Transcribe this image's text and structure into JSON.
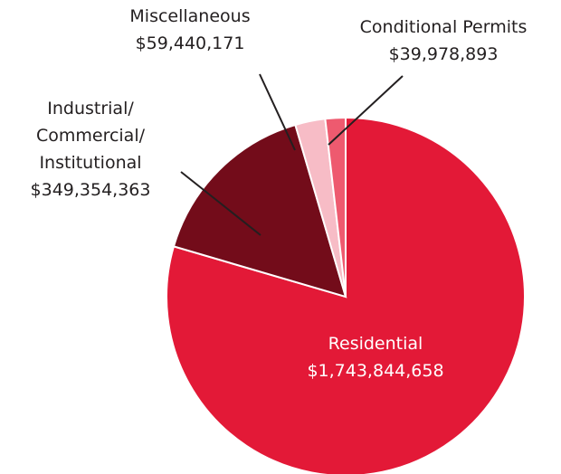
{
  "chart_data": {
    "type": "pie",
    "categories": [
      "Residential",
      "Industrial/\nCommercial/\nInstitutional",
      "Miscellaneous",
      "Conditional Permits"
    ],
    "values": [
      1743844658,
      349354363,
      59440171,
      39978893
    ],
    "value_labels": [
      "$1,743,844,658",
      "$349,354,363",
      "$59,440,171",
      "$39,978,893"
    ],
    "colors": [
      "#e31937",
      "#730c1a",
      "#f7bcc6",
      "#ee5a6f"
    ]
  }
}
